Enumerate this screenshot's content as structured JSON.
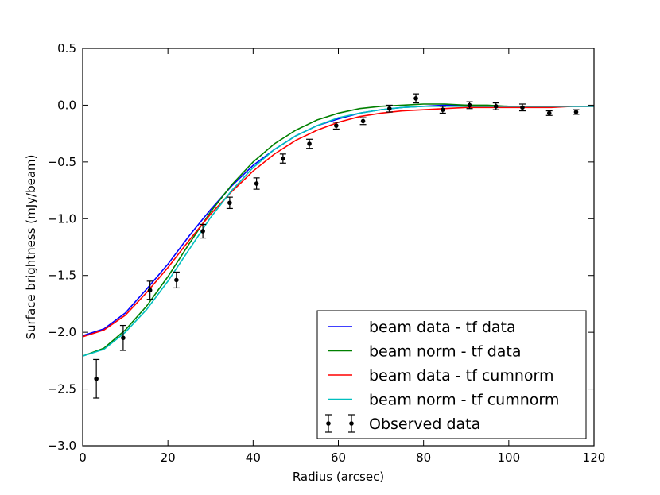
{
  "chart_data": {
    "type": "line",
    "title": "",
    "xlabel": "Radius (arcsec)",
    "ylabel": "Surface brightness (mJy/beam)",
    "xlim": [
      0,
      120
    ],
    "ylim": [
      -3.0,
      0.5
    ],
    "xticks": [
      0,
      20,
      40,
      60,
      80,
      100,
      120
    ],
    "xtick_labels": [
      "0",
      "20",
      "40",
      "60",
      "80",
      "100",
      "120"
    ],
    "yticks": [
      0.5,
      0.0,
      -0.5,
      -1.0,
      -1.5,
      -2.0,
      -2.5,
      -3.0
    ],
    "ytick_labels": [
      "0.5",
      "0.0",
      "−0.5",
      "−1.0",
      "−1.5",
      "−2.0",
      "−2.5",
      "−3.0"
    ],
    "grid": false,
    "legend_position": "lower-right",
    "series": [
      {
        "name": "beam data - tf data",
        "color": "#0000ff",
        "x": [
          0,
          5,
          10,
          15,
          20,
          25,
          30,
          35,
          40,
          45,
          50,
          55,
          60,
          65,
          70,
          75,
          80,
          85,
          90,
          95,
          100,
          105,
          110,
          115,
          120
        ],
        "y": [
          -2.03,
          -1.97,
          -1.83,
          -1.62,
          -1.4,
          -1.15,
          -0.92,
          -0.71,
          -0.53,
          -0.39,
          -0.27,
          -0.18,
          -0.12,
          -0.07,
          -0.04,
          -0.02,
          -0.01,
          0.0,
          0.0,
          -0.01,
          -0.01,
          -0.01,
          -0.01,
          -0.01,
          -0.01
        ]
      },
      {
        "name": "beam norm - tf data",
        "color": "#008000",
        "x": [
          0,
          5,
          10,
          15,
          20,
          25,
          30,
          35,
          40,
          45,
          50,
          55,
          60,
          65,
          70,
          75,
          80,
          85,
          90,
          95,
          100,
          105,
          110,
          115,
          120
        ],
        "y": [
          -2.21,
          -2.14,
          -1.98,
          -1.77,
          -1.51,
          -1.22,
          -0.94,
          -0.7,
          -0.5,
          -0.34,
          -0.22,
          -0.13,
          -0.07,
          -0.03,
          -0.01,
          0.0,
          0.01,
          0.01,
          0.0,
          0.0,
          -0.01,
          -0.01,
          -0.01,
          -0.01,
          -0.01
        ]
      },
      {
        "name": "beam data - tf cumnorm",
        "color": "#ff0000",
        "x": [
          0,
          5,
          10,
          15,
          20,
          25,
          30,
          35,
          40,
          45,
          50,
          55,
          60,
          65,
          70,
          75,
          80,
          85,
          90,
          95,
          100,
          105,
          110,
          115,
          120
        ],
        "y": [
          -2.04,
          -1.98,
          -1.85,
          -1.65,
          -1.43,
          -1.19,
          -0.96,
          -0.76,
          -0.58,
          -0.43,
          -0.31,
          -0.22,
          -0.15,
          -0.1,
          -0.07,
          -0.05,
          -0.04,
          -0.03,
          -0.02,
          -0.02,
          -0.02,
          -0.02,
          -0.02,
          -0.01,
          -0.01
        ]
      },
      {
        "name": "beam norm - tf cumnorm",
        "color": "#00bfbf",
        "x": [
          0,
          5,
          10,
          15,
          20,
          25,
          30,
          35,
          40,
          45,
          50,
          55,
          60,
          65,
          70,
          75,
          80,
          85,
          90,
          95,
          100,
          105,
          110,
          115,
          120
        ],
        "y": [
          -2.21,
          -2.15,
          -2.0,
          -1.8,
          -1.55,
          -1.27,
          -0.99,
          -0.75,
          -0.55,
          -0.39,
          -0.27,
          -0.18,
          -0.11,
          -0.07,
          -0.04,
          -0.02,
          -0.01,
          -0.01,
          -0.01,
          -0.01,
          -0.01,
          -0.01,
          -0.01,
          -0.01,
          -0.01
        ]
      }
    ],
    "observed": {
      "name": "Observed data",
      "color": "#000000",
      "points": [
        {
          "x": 3.2,
          "y": -2.41,
          "err": 0.17
        },
        {
          "x": 9.5,
          "y": -2.05,
          "err": 0.11
        },
        {
          "x": 15.8,
          "y": -1.63,
          "err": 0.08
        },
        {
          "x": 22.0,
          "y": -1.54,
          "err": 0.07
        },
        {
          "x": 28.2,
          "y": -1.11,
          "err": 0.06
        },
        {
          "x": 34.5,
          "y": -0.86,
          "err": 0.05
        },
        {
          "x": 40.8,
          "y": -0.69,
          "err": 0.05
        },
        {
          "x": 47.0,
          "y": -0.47,
          "err": 0.04
        },
        {
          "x": 53.2,
          "y": -0.34,
          "err": 0.04
        },
        {
          "x": 59.5,
          "y": -0.18,
          "err": 0.03
        },
        {
          "x": 65.8,
          "y": -0.14,
          "err": 0.03
        },
        {
          "x": 72.0,
          "y": -0.03,
          "err": 0.03
        },
        {
          "x": 78.2,
          "y": 0.06,
          "err": 0.04
        },
        {
          "x": 84.5,
          "y": -0.04,
          "err": 0.03
        },
        {
          "x": 90.8,
          "y": 0.0,
          "err": 0.03
        },
        {
          "x": 97.0,
          "y": -0.01,
          "err": 0.03
        },
        {
          "x": 103.2,
          "y": -0.02,
          "err": 0.03
        },
        {
          "x": 109.5,
          "y": -0.07,
          "err": 0.02
        },
        {
          "x": 115.8,
          "y": -0.06,
          "err": 0.02
        }
      ]
    }
  }
}
